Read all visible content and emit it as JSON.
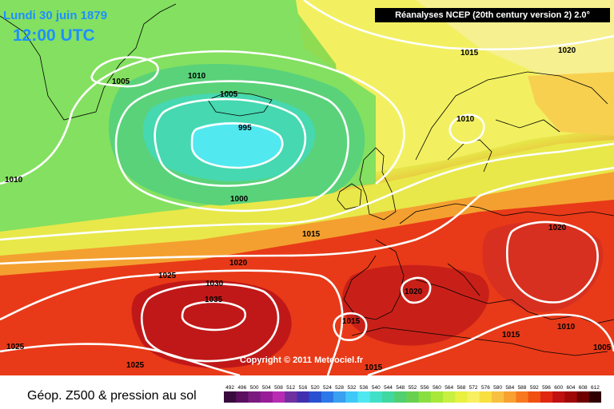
{
  "header": {
    "date": "Lundi 30 juin 1879",
    "time": "12:00 UTC",
    "source": "Réanalyses NCEP (20th century version 2) 2.0°"
  },
  "copyright": "Copyright © 2011 Meteociel.fr",
  "footer": {
    "title": "Géop. Z500 & pression au sol"
  },
  "legend": {
    "values": [
      "492",
      "496",
      "500",
      "504",
      "508",
      "512",
      "516",
      "520",
      "524",
      "528",
      "532",
      "536",
      "540",
      "544",
      "548",
      "552",
      "556",
      "560",
      "564",
      "568",
      "572",
      "576",
      "580",
      "584",
      "588",
      "592",
      "596",
      "600",
      "604",
      "608",
      "612"
    ],
    "colors": [
      "#3a0a3e",
      "#5a0f5e",
      "#7a1a7e",
      "#981c98",
      "#b82cb4",
      "#7030a0",
      "#4030b0",
      "#2850d0",
      "#2c78e8",
      "#3aa0f0",
      "#40c8f8",
      "#50e8f0",
      "#40e0c8",
      "#40d8a0",
      "#50d070",
      "#68d050",
      "#88e040",
      "#a8e838",
      "#c8f040",
      "#e8f040",
      "#f8f060",
      "#f8e040",
      "#f8c040",
      "#f8a030",
      "#f87820",
      "#f05010",
      "#e02810",
      "#c01010",
      "#a00808",
      "#700000",
      "#300000"
    ]
  },
  "isobars": {
    "labels": [
      "1005",
      "1010",
      "1005",
      "995",
      "1000",
      "1010",
      "1015",
      "1015",
      "1020",
      "1010",
      "1025",
      "1030",
      "1035",
      "1025",
      "1025",
      "1015",
      "1015",
      "1020",
      "1020",
      "1015",
      "1010",
      "1005"
    ]
  }
}
